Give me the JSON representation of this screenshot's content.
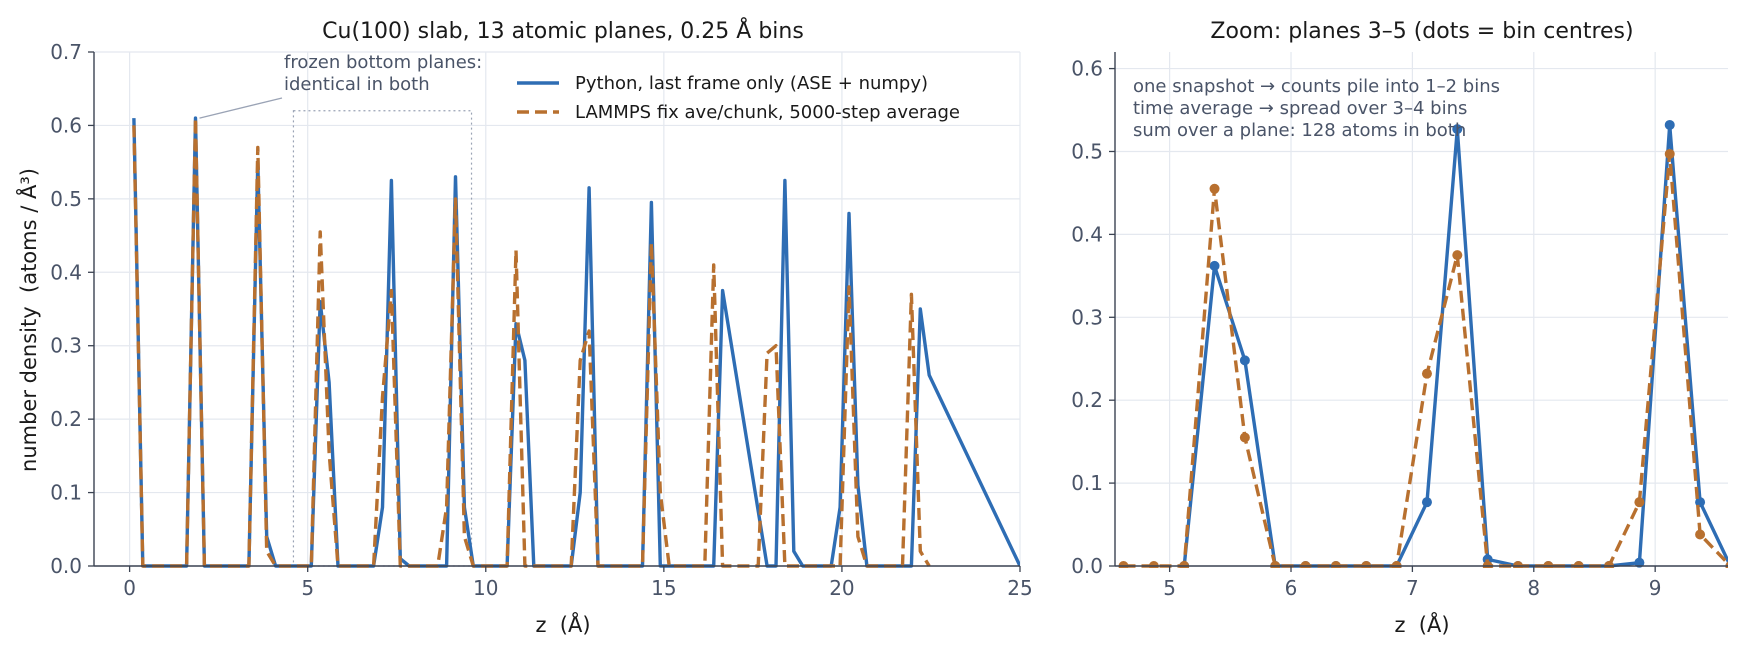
{
  "chart_data": [
    {
      "type": "line",
      "title": "Cu(100) slab, 13 atomic planes, 0.25 Å bins",
      "xlabel": "z  (Å)",
      "ylabel": "number density  (atoms / Å³)",
      "xlim": [
        -1,
        25
      ],
      "ylim": [
        0,
        0.7
      ],
      "xticks": [
        0,
        5,
        10,
        15,
        20,
        25
      ],
      "yticks": [
        0.0,
        0.1,
        0.2,
        0.3,
        0.4,
        0.5,
        0.6,
        0.7
      ],
      "xtick_labels": [
        "0",
        "5",
        "10",
        "15",
        "20",
        "25"
      ],
      "ytick_labels": [
        "0.0",
        "0.1",
        "0.2",
        "0.3",
        "0.4",
        "0.5",
        "0.6",
        "0.7"
      ],
      "grid": true,
      "legend": "top-right",
      "annotation": {
        "text": [
          "frozen bottom planes:",
          "identical in both"
        ],
        "points_to": [
          1.85,
          0.61
        ]
      },
      "zoom_box": {
        "x": [
          4.6,
          9.6
        ],
        "y": [
          0,
          0.62
        ]
      },
      "series": [
        {
          "name": "Python, last frame only (ASE + numpy)",
          "color": "#2e6db4",
          "style": "solid",
          "x": [
            0.12,
            0.37,
            1.6,
            1.85,
            2.1,
            3.35,
            3.6,
            3.85,
            4.1,
            5.1,
            5.35,
            5.6,
            5.85,
            6.85,
            7.1,
            7.35,
            7.6,
            7.85,
            8.9,
            9.15,
            9.4,
            9.65,
            10.6,
            10.85,
            11.1,
            11.35,
            12.4,
            12.65,
            12.9,
            13.15,
            14.4,
            14.65,
            14.9,
            15.9,
            16.15,
            16.4,
            16.65,
            17.9,
            18.15,
            18.4,
            18.65,
            18.9,
            19.7,
            19.95,
            20.2,
            20.45,
            20.7,
            21.7,
            21.95,
            22.2,
            22.45,
            25.0
          ],
          "y": [
            0.61,
            0.0,
            0.0,
            0.61,
            0.0,
            0.0,
            0.55,
            0.04,
            0.0,
            0.0,
            0.36,
            0.25,
            0.0,
            0.0,
            0.08,
            0.525,
            0.01,
            0.0,
            0.0,
            0.53,
            0.08,
            0.0,
            0.0,
            0.33,
            0.28,
            0.0,
            0.0,
            0.1,
            0.515,
            0.0,
            0.0,
            0.495,
            0.0,
            0.0,
            0.0,
            0.0,
            0.375,
            0.0,
            0.0,
            0.525,
            0.02,
            0.0,
            0.0,
            0.08,
            0.48,
            0.11,
            0.0,
            0.0,
            0.0,
            0.35,
            0.26,
            0.0
          ]
        },
        {
          "name": "LAMMPS fix ave/chunk, 5000-step average",
          "color": "#b8702f",
          "style": "dashed",
          "x": [
            0.12,
            0.37,
            1.6,
            1.85,
            2.1,
            3.35,
            3.6,
            3.85,
            4.1,
            5.1,
            5.35,
            5.6,
            5.85,
            6.85,
            7.1,
            7.35,
            7.6,
            7.85,
            8.65,
            8.9,
            9.15,
            9.4,
            9.65,
            10.6,
            10.85,
            11.1,
            11.35,
            12.4,
            12.65,
            12.9,
            13.15,
            14.15,
            14.4,
            14.65,
            14.9,
            15.15,
            15.9,
            16.15,
            16.4,
            16.65,
            17.65,
            17.9,
            18.15,
            18.4,
            18.65,
            19.7,
            19.95,
            20.2,
            20.45,
            20.7,
            21.45,
            21.7,
            21.95,
            22.2,
            22.45
          ],
          "y": [
            0.6,
            0.0,
            0.0,
            0.61,
            0.0,
            0.0,
            0.57,
            0.02,
            0.0,
            0.0,
            0.455,
            0.155,
            0.0,
            0.0,
            0.23,
            0.375,
            0.0,
            0.0,
            0.0,
            0.08,
            0.5,
            0.04,
            0.0,
            0.0,
            0.43,
            0.0,
            0.0,
            0.0,
            0.28,
            0.32,
            0.0,
            0.0,
            0.0,
            0.44,
            0.1,
            0.0,
            0.0,
            0.0,
            0.41,
            0.0,
            0.0,
            0.29,
            0.3,
            0.0,
            0.0,
            0.0,
            0.0,
            0.38,
            0.04,
            0.0,
            0.0,
            0.0,
            0.37,
            0.02,
            0.0
          ]
        }
      ]
    },
    {
      "type": "line",
      "title": "Zoom: planes 3–5 (dots = bin centres)",
      "xlabel": "z  (Å)",
      "ylabel": "",
      "xlim": [
        4.55,
        9.6
      ],
      "ylim": [
        0,
        0.62
      ],
      "xticks": [
        5,
        6,
        7,
        8,
        9
      ],
      "yticks": [
        0.0,
        0.1,
        0.2,
        0.3,
        0.4,
        0.5,
        0.6
      ],
      "xtick_labels": [
        "5",
        "6",
        "7",
        "8",
        "9"
      ],
      "ytick_labels": [
        "0.0",
        "0.1",
        "0.2",
        "0.3",
        "0.4",
        "0.5",
        "0.6"
      ],
      "grid": true,
      "markers": true,
      "notes": [
        "one snapshot → counts pile into 1–2 bins",
        "time average → spread over 3–4 bins",
        "sum over a plane: 128 atoms in both"
      ],
      "series": [
        {
          "name": "Python, last frame only (ASE + numpy)",
          "color": "#2e6db4",
          "style": "solid",
          "x": [
            5.12,
            5.37,
            5.62,
            5.87,
            6.12,
            6.37,
            6.62,
            6.87,
            7.12,
            7.37,
            7.62,
            7.87,
            8.12,
            8.37,
            8.62,
            8.87,
            9.12,
            9.37,
            9.62
          ],
          "y": [
            0.0,
            0.362,
            0.248,
            0.0,
            0.0,
            0.0,
            0.0,
            0.0,
            0.077,
            0.527,
            0.008,
            0.0,
            0.0,
            0.0,
            0.0,
            0.004,
            0.532,
            0.077,
            0.0
          ]
        },
        {
          "name": "LAMMPS fix ave/chunk, 5000-step average",
          "color": "#b8702f",
          "style": "dashed",
          "x": [
            4.62,
            4.87,
            5.12,
            5.37,
            5.62,
            5.87,
            6.12,
            6.37,
            6.62,
            6.87,
            7.12,
            7.37,
            7.62,
            7.87,
            8.12,
            8.37,
            8.62,
            8.87,
            9.12,
            9.37,
            9.62
          ],
          "y": [
            0.0,
            0.0,
            0.0,
            0.455,
            0.155,
            0.0,
            0.0,
            0.0,
            0.0,
            0.0,
            0.232,
            0.375,
            0.0,
            0.0,
            0.0,
            0.0,
            0.0,
            0.077,
            0.497,
            0.038,
            0.0
          ]
        }
      ]
    }
  ]
}
